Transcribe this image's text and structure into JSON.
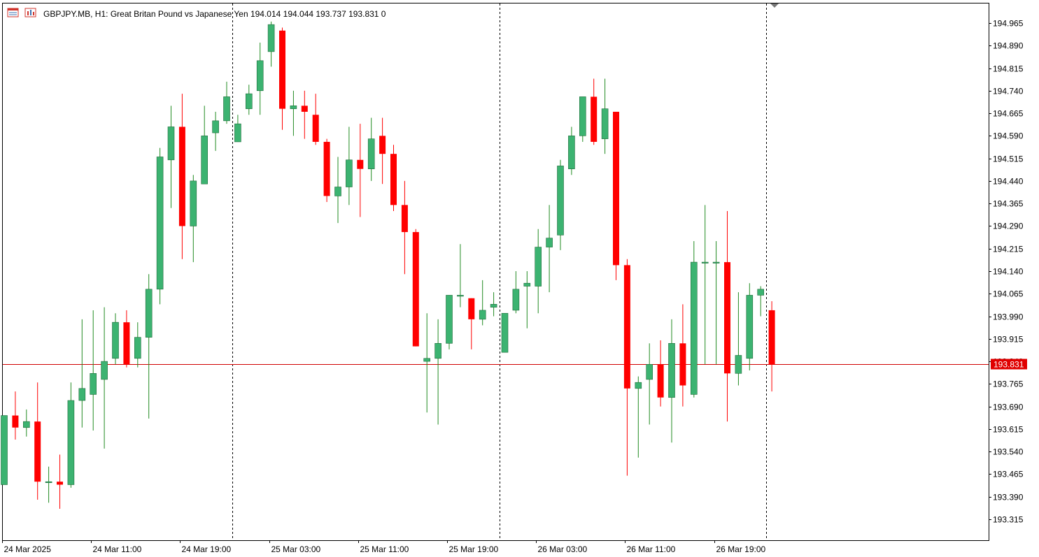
{
  "window": {
    "symbol": "GBPJPY.MB",
    "timeframe": "H1",
    "description": "Great Britan Pound vs Japanese Yen",
    "ohlc": [
      "194.014",
      "194.044",
      "193.737",
      "193.831"
    ],
    "volume": "0",
    "header_text": "GBPJPY.MB, H1:  Great Britan Pound vs Japanese Yen  194.014 194.044 193.737 193.831  0",
    "icons": [
      "market-watch-icon",
      "chart-window-icon"
    ]
  },
  "colors": {
    "bull": "#3cb371",
    "bear": "#ff0000",
    "wick_bull": "#228b22",
    "wick_bear": "#ff0000",
    "price_line": "#d00000",
    "price_label_bg": "#e00000",
    "separator": "#000000",
    "axis": "#000000"
  },
  "current_price_label": "193.831",
  "chart_data": {
    "type": "candlestick",
    "symbol": "GBPJPY.MB",
    "timeframe": "H1",
    "ylim": [
      193.255,
      195.035
    ],
    "y_ticks": [
      "194.965",
      "194.890",
      "194.815",
      "194.740",
      "194.665",
      "194.590",
      "194.515",
      "194.440",
      "194.365",
      "194.290",
      "194.215",
      "194.140",
      "194.065",
      "193.990",
      "193.915",
      "193.840",
      "193.765",
      "193.690",
      "193.615",
      "193.540",
      "193.465",
      "193.390",
      "193.315"
    ],
    "x_labels": [
      {
        "label": "24 Mar 2025",
        "bar": 0
      },
      {
        "label": "24 Mar 11:00",
        "bar": 8
      },
      {
        "label": "24 Mar 19:00",
        "bar": 16
      },
      {
        "label": "25 Mar 03:00",
        "bar": 24
      },
      {
        "label": "25 Mar 11:00",
        "bar": 32
      },
      {
        "label": "25 Mar 19:00",
        "bar": 40
      },
      {
        "label": "26 Mar 03:00",
        "bar": 48
      },
      {
        "label": "26 Mar 11:00",
        "bar": 56
      },
      {
        "label": "26 Mar 19:00",
        "bar": 64
      }
    ],
    "day_separators_after_bar": [
      20.5,
      44.5,
      68.5
    ],
    "current_price": 193.831,
    "candles": [
      {
        "o": 193.43,
        "h": 193.66,
        "l": 193.43,
        "c": 193.66
      },
      {
        "o": 193.66,
        "h": 193.74,
        "l": 193.58,
        "c": 193.62
      },
      {
        "o": 193.62,
        "h": 193.68,
        "l": 193.59,
        "c": 193.64
      },
      {
        "o": 193.64,
        "h": 193.77,
        "l": 193.38,
        "c": 193.44
      },
      {
        "o": 193.44,
        "h": 193.49,
        "l": 193.37,
        "c": 193.44
      },
      {
        "o": 193.44,
        "h": 193.53,
        "l": 193.35,
        "c": 193.43
      },
      {
        "o": 193.43,
        "h": 193.77,
        "l": 193.42,
        "c": 193.71
      },
      {
        "o": 193.71,
        "h": 193.98,
        "l": 193.62,
        "c": 193.75
      },
      {
        "o": 193.73,
        "h": 194.01,
        "l": 193.61,
        "c": 193.8
      },
      {
        "o": 193.78,
        "h": 194.02,
        "l": 193.55,
        "c": 193.84
      },
      {
        "o": 193.85,
        "h": 194.0,
        "l": 193.83,
        "c": 193.97
      },
      {
        "o": 193.97,
        "h": 194.01,
        "l": 193.82,
        "c": 193.83
      },
      {
        "o": 193.85,
        "h": 193.97,
        "l": 193.82,
        "c": 193.92
      },
      {
        "o": 193.92,
        "h": 194.13,
        "l": 193.65,
        "c": 194.08
      },
      {
        "o": 194.08,
        "h": 194.55,
        "l": 194.03,
        "c": 194.52
      },
      {
        "o": 194.51,
        "h": 194.69,
        "l": 194.35,
        "c": 194.62
      },
      {
        "o": 194.62,
        "h": 194.73,
        "l": 194.18,
        "c": 194.29
      },
      {
        "o": 194.29,
        "h": 194.46,
        "l": 194.17,
        "c": 194.44
      },
      {
        "o": 194.43,
        "h": 194.69,
        "l": 194.43,
        "c": 194.59
      },
      {
        "o": 194.6,
        "h": 194.67,
        "l": 194.54,
        "c": 194.64
      },
      {
        "o": 194.64,
        "h": 194.77,
        "l": 194.63,
        "c": 194.72
      },
      {
        "o": 194.57,
        "h": 194.66,
        "l": 194.57,
        "c": 194.63
      },
      {
        "o": 194.68,
        "h": 194.76,
        "l": 194.66,
        "c": 194.73
      },
      {
        "o": 194.74,
        "h": 194.9,
        "l": 194.66,
        "c": 194.84
      },
      {
        "o": 194.87,
        "h": 194.97,
        "l": 194.82,
        "c": 194.96
      },
      {
        "o": 194.94,
        "h": 194.95,
        "l": 194.61,
        "c": 194.68
      },
      {
        "o": 194.68,
        "h": 194.74,
        "l": 194.59,
        "c": 194.69
      },
      {
        "o": 194.69,
        "h": 194.74,
        "l": 194.58,
        "c": 194.67
      },
      {
        "o": 194.66,
        "h": 194.73,
        "l": 194.56,
        "c": 194.57
      },
      {
        "o": 194.57,
        "h": 194.58,
        "l": 194.37,
        "c": 194.39
      },
      {
        "o": 194.39,
        "h": 194.52,
        "l": 194.3,
        "c": 194.42
      },
      {
        "o": 194.42,
        "h": 194.62,
        "l": 194.36,
        "c": 194.51
      },
      {
        "o": 194.51,
        "h": 194.63,
        "l": 194.32,
        "c": 194.48
      },
      {
        "o": 194.48,
        "h": 194.65,
        "l": 194.44,
        "c": 194.58
      },
      {
        "o": 194.59,
        "h": 194.65,
        "l": 194.43,
        "c": 194.53
      },
      {
        "o": 194.53,
        "h": 194.56,
        "l": 194.34,
        "c": 194.36
      },
      {
        "o": 194.36,
        "h": 194.44,
        "l": 194.13,
        "c": 194.27
      },
      {
        "o": 194.27,
        "h": 194.28,
        "l": 193.89,
        "c": 193.89
      },
      {
        "o": 193.84,
        "h": 194.0,
        "l": 193.67,
        "c": 193.85
      },
      {
        "o": 193.85,
        "h": 193.98,
        "l": 193.63,
        "c": 193.9
      },
      {
        "o": 193.9,
        "h": 194.06,
        "l": 193.88,
        "c": 194.06
      },
      {
        "o": 194.06,
        "h": 194.23,
        "l": 194.02,
        "c": 194.06
      },
      {
        "o": 194.05,
        "h": 194.05,
        "l": 193.88,
        "c": 193.98
      },
      {
        "o": 193.98,
        "h": 194.11,
        "l": 193.96,
        "c": 194.01
      },
      {
        "o": 194.02,
        "h": 194.07,
        "l": 193.99,
        "c": 194.03
      },
      {
        "o": 193.87,
        "h": 194.0,
        "l": 193.87,
        "c": 194.0
      },
      {
        "o": 194.01,
        "h": 194.14,
        "l": 194.0,
        "c": 194.08
      },
      {
        "o": 194.09,
        "h": 194.14,
        "l": 193.95,
        "c": 194.1
      },
      {
        "o": 194.09,
        "h": 194.28,
        "l": 194.0,
        "c": 194.22
      },
      {
        "o": 194.22,
        "h": 194.36,
        "l": 194.07,
        "c": 194.25
      },
      {
        "o": 194.26,
        "h": 194.51,
        "l": 194.21,
        "c": 194.49
      },
      {
        "o": 194.48,
        "h": 194.62,
        "l": 194.46,
        "c": 194.59
      },
      {
        "o": 194.59,
        "h": 194.72,
        "l": 194.57,
        "c": 194.72
      },
      {
        "o": 194.72,
        "h": 194.78,
        "l": 194.56,
        "c": 194.57
      },
      {
        "o": 194.58,
        "h": 194.78,
        "l": 194.53,
        "c": 194.68
      },
      {
        "o": 194.67,
        "h": 194.67,
        "l": 194.11,
        "c": 194.16
      },
      {
        "o": 194.16,
        "h": 194.18,
        "l": 193.46,
        "c": 193.75
      },
      {
        "o": 193.75,
        "h": 193.79,
        "l": 193.52,
        "c": 193.77
      },
      {
        "o": 193.78,
        "h": 193.9,
        "l": 193.63,
        "c": 193.83
      },
      {
        "o": 193.83,
        "h": 193.91,
        "l": 193.69,
        "c": 193.72
      },
      {
        "o": 193.72,
        "h": 193.98,
        "l": 193.57,
        "c": 193.9
      },
      {
        "o": 193.9,
        "h": 194.03,
        "l": 193.69,
        "c": 193.76
      },
      {
        "o": 193.73,
        "h": 194.24,
        "l": 193.72,
        "c": 194.17
      },
      {
        "o": 194.17,
        "h": 194.36,
        "l": 193.83,
        "c": 194.17
      },
      {
        "o": 194.17,
        "h": 194.24,
        "l": 193.83,
        "c": 194.17
      },
      {
        "o": 194.17,
        "h": 194.34,
        "l": 193.64,
        "c": 193.8
      },
      {
        "o": 193.8,
        "h": 194.07,
        "l": 193.76,
        "c": 193.86
      },
      {
        "o": 193.85,
        "h": 194.1,
        "l": 193.81,
        "c": 194.06
      },
      {
        "o": 194.06,
        "h": 194.09,
        "l": 193.99,
        "c": 194.08
      },
      {
        "o": 194.01,
        "h": 194.04,
        "l": 193.74,
        "c": 193.83
      }
    ]
  }
}
